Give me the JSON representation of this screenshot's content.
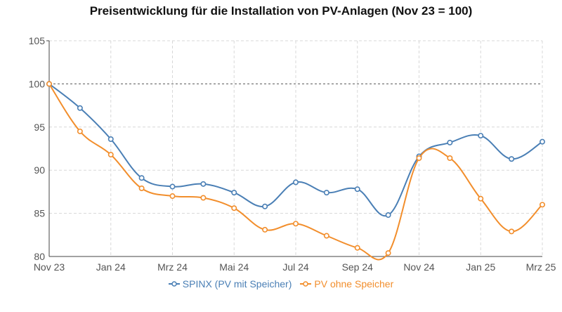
{
  "chart_data": {
    "type": "line",
    "title": "Preisentwicklung für die Installation von PV-Anlagen (Nov 23 = 100)",
    "xlabel": "",
    "ylabel": "",
    "x_ticks": [
      "Nov 23",
      "Jan 24",
      "Mrz 24",
      "Mai 24",
      "Jul 24",
      "Sep 24",
      "Nov 24",
      "Jan 25",
      "Mrz 25"
    ],
    "categories": [
      "Nov 23",
      "Dez 23",
      "Jan 24",
      "Feb 24",
      "Mrz 24",
      "Apr 24",
      "Mai 24",
      "Jun 24",
      "Jul 24",
      "Aug 24",
      "Sep 24",
      "Okt 24",
      "Nov 24",
      "Dez 24",
      "Jan 25",
      "Feb 25",
      "Mrz 25"
    ],
    "y_ticks": [
      80,
      85,
      90,
      95,
      100,
      105
    ],
    "ylim": [
      80,
      105
    ],
    "reference_line": 100,
    "grid": true,
    "legend_position": "bottom",
    "series": [
      {
        "name": "SPINX (PV mit Speicher)",
        "color": "#4a7fb5",
        "values": [
          100,
          97.2,
          93.6,
          89.1,
          88.1,
          88.4,
          87.4,
          85.8,
          88.6,
          87.4,
          87.8,
          84.8,
          91.6,
          93.2,
          94.0,
          91.3,
          93.3
        ]
      },
      {
        "name": "PV ohne Speicher",
        "color": "#f28e2c",
        "values": [
          100,
          94.5,
          91.8,
          87.9,
          87.0,
          86.8,
          85.6,
          83.1,
          83.8,
          82.4,
          81.0,
          80.4,
          91.4,
          91.4,
          86.7,
          82.9,
          86.0
        ]
      }
    ]
  }
}
